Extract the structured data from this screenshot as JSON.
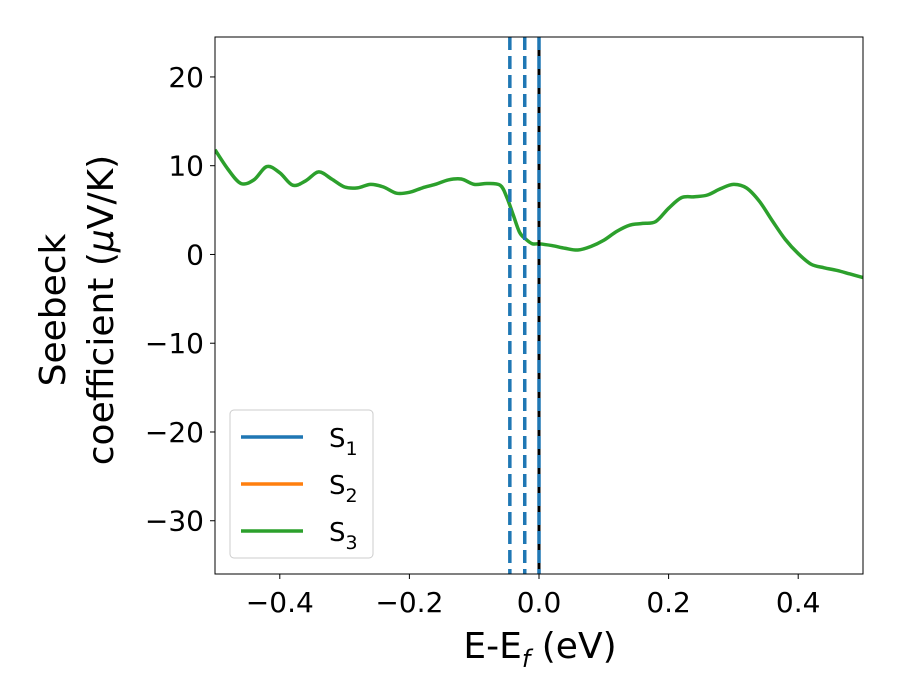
{
  "chart_data": {
    "type": "line",
    "xlabel": {
      "main": "E-E",
      "sub": "f",
      "unit": " (eV)"
    },
    "ylabel": {
      "line1": "Seebeck",
      "line2_prefix": "coefficient  (",
      "mu": "μ",
      "line2_suffix": "V/K)"
    },
    "xlim": [
      -0.5,
      0.5
    ],
    "ylim": [
      -36,
      24.5
    ],
    "xticks": [
      -0.4,
      -0.2,
      0.0,
      0.2,
      0.4
    ],
    "xtick_labels": [
      "−0.4",
      "−0.2",
      "0.0",
      "0.2",
      "0.4"
    ],
    "yticks": [
      20,
      10,
      0,
      -10,
      -20,
      -30
    ],
    "ytick_labels": [
      "20",
      "10",
      "0",
      "−10",
      "−20",
      "−30"
    ],
    "grid": false,
    "legend_position": "lower-left",
    "series": [
      {
        "name": "S",
        "sub": "1",
        "color": "#1f77b4",
        "x": [],
        "y": []
      },
      {
        "name": "S",
        "sub": "2",
        "color": "#ff7f0e",
        "x": [],
        "y": []
      },
      {
        "name": "S",
        "sub": "3",
        "color": "#2ca02c",
        "x": [
          -0.5,
          -0.48,
          -0.46,
          -0.44,
          -0.42,
          -0.4,
          -0.38,
          -0.36,
          -0.34,
          -0.32,
          -0.3,
          -0.28,
          -0.26,
          -0.24,
          -0.22,
          -0.2,
          -0.18,
          -0.16,
          -0.14,
          -0.12,
          -0.1,
          -0.08,
          -0.06,
          -0.05,
          -0.04,
          -0.03,
          -0.02,
          -0.01,
          0.0,
          0.02,
          0.04,
          0.06,
          0.08,
          0.1,
          0.12,
          0.14,
          0.16,
          0.18,
          0.2,
          0.22,
          0.24,
          0.26,
          0.28,
          0.3,
          0.32,
          0.34,
          0.36,
          0.38,
          0.4,
          0.42,
          0.44,
          0.46,
          0.48,
          0.5
        ],
        "y": [
          11.8,
          9.6,
          8.0,
          8.4,
          9.9,
          9.2,
          7.8,
          8.3,
          9.3,
          8.5,
          7.6,
          7.5,
          7.9,
          7.6,
          6.9,
          7.0,
          7.5,
          7.9,
          8.4,
          8.5,
          7.9,
          8.0,
          7.8,
          6.5,
          4.5,
          2.5,
          1.7,
          1.2,
          1.2,
          1.0,
          0.7,
          0.5,
          0.9,
          1.6,
          2.6,
          3.3,
          3.5,
          3.7,
          5.2,
          6.4,
          6.5,
          6.7,
          7.4,
          7.9,
          7.5,
          6.0,
          3.8,
          1.7,
          0.1,
          -1.1,
          -1.5,
          -1.8,
          -2.2,
          -2.6
        ]
      }
    ],
    "vlines": [
      {
        "x": -0.045,
        "style": "dashed",
        "color": "#1f77b4"
      },
      {
        "x": -0.022,
        "style": "dashed",
        "color": "#1f77b4"
      },
      {
        "x": 0.0,
        "style": "solid",
        "color": "#000000"
      },
      {
        "x": 0.0,
        "style": "dashed",
        "color": "#1f77b4"
      }
    ]
  }
}
